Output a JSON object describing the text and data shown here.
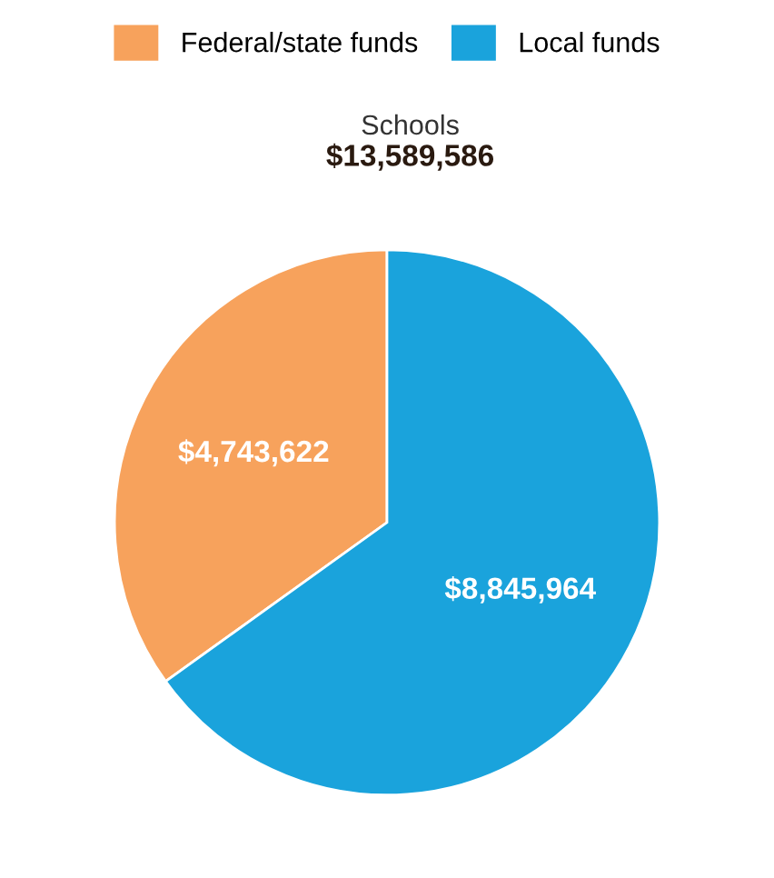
{
  "chart_data": {
    "type": "pie",
    "title": "Schools",
    "subtitle": "$13,589,586",
    "categories": [
      "Federal/state funds",
      "Local funds"
    ],
    "values": [
      4743622,
      8845964
    ],
    "colors": [
      "#f7a25c",
      "#1aa3dc"
    ],
    "value_labels": [
      "$4,743,622",
      "$8,845,964"
    ],
    "legend": "top"
  }
}
